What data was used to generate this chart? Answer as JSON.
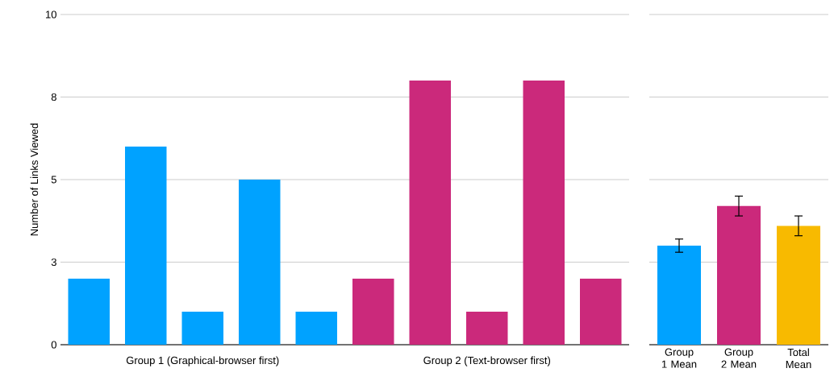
{
  "chart_data": [
    {
      "type": "bar",
      "ylabel": "Number of Links Viewed",
      "categories": [
        null,
        null,
        null,
        null,
        null,
        null,
        null,
        null,
        null,
        null
      ],
      "series": [
        {
          "name": "Group 1 (Graphical-browser first)",
          "color": "#00a2ff",
          "values": [
            2,
            6,
            1,
            5,
            1,
            null,
            null,
            null,
            null,
            null
          ]
        },
        {
          "name": "Group 2 (Text-browser first)",
          "color": "#cb297b",
          "values": [
            null,
            null,
            null,
            null,
            null,
            2,
            8,
            1,
            8,
            2
          ]
        }
      ],
      "ylim": [
        0,
        10
      ],
      "yticks": [
        0,
        {
          "value": 2.5,
          "label": "3"
        },
        5,
        {
          "value": 7.5,
          "label": "8"
        },
        10
      ],
      "grid": "y"
    },
    {
      "type": "bar",
      "categories": [
        "Group 1 Mean",
        "Group 2 Mean",
        "Total Mean"
      ],
      "values": [
        3,
        4.2,
        3.6
      ],
      "colors": [
        "#00a2ff",
        "#cb297b",
        "#f8ba00"
      ],
      "errors": [
        0.2,
        0.3,
        0.3
      ],
      "ylim": [
        0,
        10
      ],
      "yticks": [
        0,
        2.5,
        5,
        7.5,
        10
      ],
      "grid": "y",
      "tick_labels": "x"
    }
  ]
}
